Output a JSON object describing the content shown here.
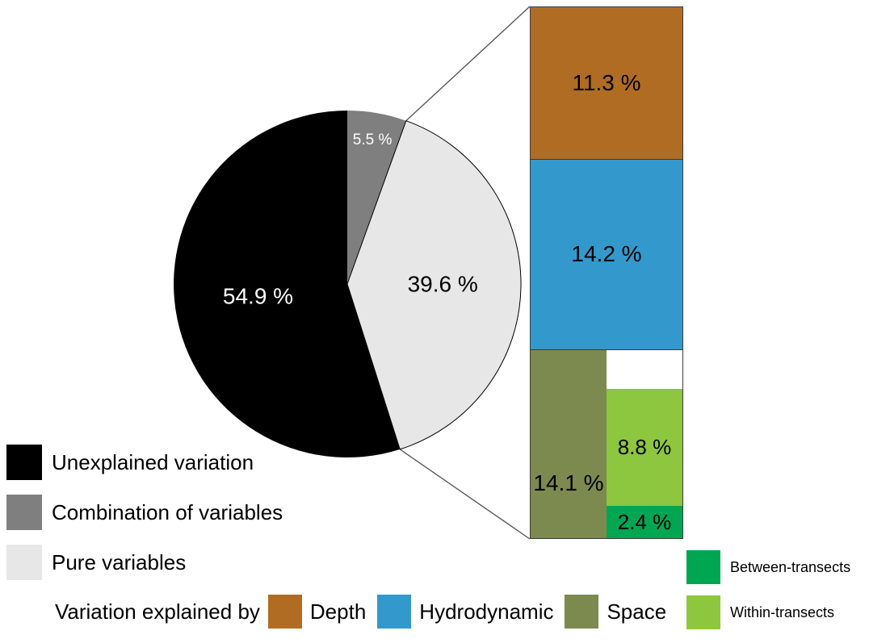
{
  "chart_data": {
    "type": "pie",
    "title": "",
    "units": "%",
    "pie": {
      "start_angle_deg": 0,
      "direction": "clockwise",
      "slices": [
        {
          "name": "Combination of variables",
          "value": 5.5,
          "display": "5.5 %",
          "color": "#7f7f7f",
          "label_color": "#ffffff",
          "label_r": 0.84,
          "label_size": 19,
          "outline": false
        },
        {
          "name": "Pure variables",
          "value": 39.6,
          "display": "39.6 %",
          "color": "#e7e7e7",
          "label_color": "#000000",
          "label_r": 0.55,
          "label_size": 28,
          "outline": true
        },
        {
          "name": "Unexplained variation",
          "value": 54.9,
          "display": "54.9 %",
          "color": "#000000",
          "label_color": "#ffffff",
          "label_r": 0.52,
          "label_size": 28,
          "outline": false
        }
      ]
    },
    "exploded_bar": {
      "represents": "Pure variables",
      "total": 39.6,
      "segments": [
        {
          "name": "Depth",
          "value": 11.3,
          "display": "11.3 %",
          "color": "#b16c23"
        },
        {
          "name": "Hydrodynamic",
          "value": 14.2,
          "display": "14.2 %",
          "color": "#3399cc"
        },
        {
          "name": "Space",
          "value": 14.1,
          "display": "14.1 %",
          "color": "#7c8a50",
          "subdivision": [
            {
              "name": "Within-transects",
              "value": 8.8,
              "display": "8.8 %",
              "color": "#8dc63f"
            },
            {
              "name": "Between-transects",
              "value": 2.4,
              "display": "2.4 %",
              "color": "#00a651"
            }
          ]
        }
      ]
    }
  },
  "legend": {
    "items": [
      {
        "label": "Unexplained variation",
        "color": "#000000"
      },
      {
        "label": "Combination of variables",
        "color": "#7f7f7f"
      },
      {
        "label": "Pure variables",
        "color": "#e7e7e7"
      }
    ],
    "explained_by": {
      "prefix": "Variation explained by",
      "items": [
        {
          "label": "Depth",
          "color": "#b16c23"
        },
        {
          "label": "Hydrodynamic",
          "color": "#3399cc"
        },
        {
          "label": "Space",
          "color": "#7c8a50"
        }
      ]
    },
    "transects": [
      {
        "label": "Between-transects",
        "color": "#00a651"
      },
      {
        "label": "Within-transects",
        "color": "#8dc63f"
      }
    ]
  }
}
